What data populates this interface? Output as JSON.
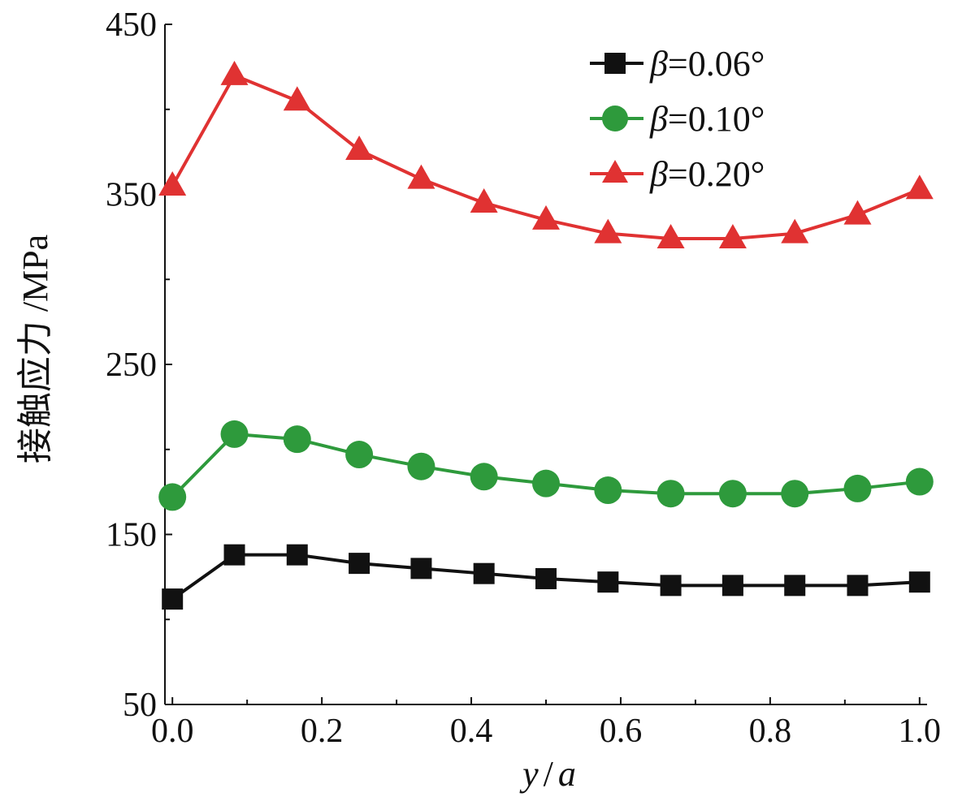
{
  "chart_data": {
    "type": "line",
    "xlabel": {
      "var1": "y",
      "sep": "/",
      "var2": "a"
    },
    "ylabel": "接触应力 /MPa",
    "xlim": [
      -0.01,
      1.01
    ],
    "ylim": [
      50,
      450
    ],
    "xticks": [
      0.0,
      0.2,
      0.4,
      0.6,
      0.8,
      1.0
    ],
    "xtick_labels": [
      "0.0",
      "0.2",
      "0.4",
      "0.6",
      "0.8",
      "1.0"
    ],
    "yticks": [
      50,
      150,
      250,
      350,
      450
    ],
    "ytick_labels": [
      "50",
      "150",
      "250",
      "350",
      "450"
    ],
    "grid": false,
    "legend_position": "top-right",
    "x": [
      0.0,
      0.083,
      0.167,
      0.25,
      0.333,
      0.417,
      0.5,
      0.583,
      0.667,
      0.75,
      0.833,
      0.917,
      1.0
    ],
    "series": [
      {
        "name": "β=0.06°",
        "legend": {
          "symbol": "β",
          "eq": "=0.06°"
        },
        "marker": "square",
        "color": "#111111",
        "values": [
          112,
          138,
          138,
          133,
          130,
          127,
          124,
          122,
          120,
          120,
          120,
          120,
          122
        ]
      },
      {
        "name": "β=0.10°",
        "legend": {
          "symbol": "β",
          "eq": "=0.10°"
        },
        "marker": "circle",
        "color": "#2e9a3c",
        "values": [
          172,
          209,
          206,
          197,
          190,
          184,
          180,
          176,
          174,
          174,
          174,
          177,
          181
        ]
      },
      {
        "name": "β=0.20°",
        "legend": {
          "symbol": "β",
          "eq": "=0.20°"
        },
        "marker": "triangle",
        "color": "#e03232",
        "values": [
          355,
          420,
          405,
          376,
          359,
          345,
          335,
          327,
          324,
          324,
          327,
          338,
          353
        ]
      }
    ]
  }
}
